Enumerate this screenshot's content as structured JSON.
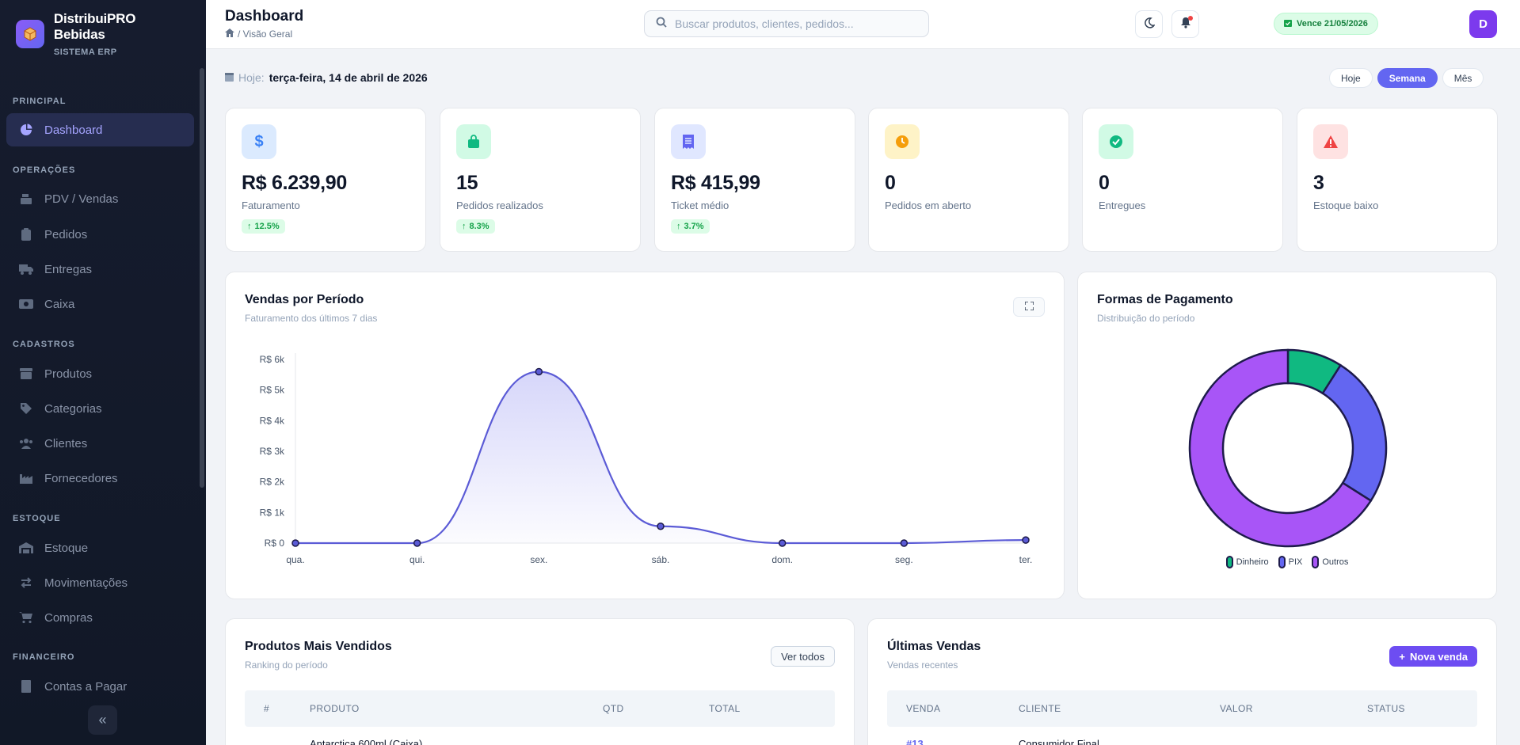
{
  "brand": {
    "name": "DistribuiPRO Bebidas",
    "subtitle": "SISTEMA ERP"
  },
  "sidebar": {
    "sections": [
      {
        "label": "PRINCIPAL"
      },
      {
        "label": "OPERAÇÕES"
      },
      {
        "label": "CADASTROS"
      },
      {
        "label": "ESTOQUE"
      },
      {
        "label": "FINANCEIRO"
      }
    ],
    "items": [
      {
        "label": "Dashboard",
        "icon": "chart-pie-icon",
        "active": true
      },
      {
        "label": "PDV / Vendas",
        "icon": "cash-register-icon"
      },
      {
        "label": "Pedidos",
        "icon": "clipboard-icon"
      },
      {
        "label": "Entregas",
        "icon": "truck-icon"
      },
      {
        "label": "Caixa",
        "icon": "money-icon"
      },
      {
        "label": "Produtos",
        "icon": "box-icon"
      },
      {
        "label": "Categorias",
        "icon": "tags-icon"
      },
      {
        "label": "Clientes",
        "icon": "users-icon"
      },
      {
        "label": "Fornecedores",
        "icon": "industry-icon"
      },
      {
        "label": "Estoque",
        "icon": "warehouse-icon"
      },
      {
        "label": "Movimentações",
        "icon": "exchange-icon"
      },
      {
        "label": "Compras",
        "icon": "cart-icon"
      },
      {
        "label": "Contas a Pagar",
        "icon": "invoice-icon"
      }
    ],
    "collapse_icon": "double-chevron-left-icon"
  },
  "header": {
    "title": "Dashboard",
    "breadcrumb": "/ Visão Geral",
    "search_placeholder": "Buscar produtos, clientes, pedidos...",
    "license_badge": "Vence 21/05/2026",
    "avatar_initial": "D"
  },
  "date_row": {
    "prefix": "Hoje:",
    "date": "terça-feira, 14 de abril de 2026"
  },
  "periods": [
    "Hoje",
    "Semana",
    "Mês"
  ],
  "active_period": "Semana",
  "kpis": [
    {
      "value": "R$ 6.239,90",
      "label": "Faturamento",
      "delta": "12.5%",
      "icon": "dollar-icon",
      "color": "#3b82f6",
      "bg": "#dbeafe"
    },
    {
      "value": "15",
      "label": "Pedidos realizados",
      "delta": "8.3%",
      "icon": "shopping-bag-icon",
      "color": "#10b981",
      "bg": "#d1fae5"
    },
    {
      "value": "R$ 415,99",
      "label": "Ticket médio",
      "delta": "3.7%",
      "icon": "receipt-icon",
      "color": "#6366f1",
      "bg": "#e0e7ff"
    },
    {
      "value": "0",
      "label": "Pedidos em aberto",
      "delta": "",
      "icon": "clock-icon",
      "color": "#f59e0b",
      "bg": "#fef3c7"
    },
    {
      "value": "0",
      "label": "Entregues",
      "delta": "",
      "icon": "check-circle-icon",
      "color": "#10b981",
      "bg": "#d1fae5"
    },
    {
      "value": "3",
      "label": "Estoque baixo",
      "delta": "",
      "icon": "warning-icon",
      "color": "#ef4444",
      "bg": "#fee2e2"
    }
  ],
  "sales_panel": {
    "title": "Vendas por Período",
    "subtitle": "Faturamento dos últimos 7 dias"
  },
  "payment_panel": {
    "title": "Formas de Pagamento",
    "subtitle": "Distribuição do período"
  },
  "chart_data": [
    {
      "type": "line",
      "categories": [
        "qua.",
        "qui.",
        "sex.",
        "sáb.",
        "dom.",
        "seg.",
        "ter."
      ],
      "values": [
        0,
        0,
        5600,
        550,
        0,
        0,
        100
      ],
      "ylim": [
        0,
        6000
      ],
      "yticks": [
        "R$ 0",
        "R$ 1k",
        "R$ 2k",
        "R$ 3k",
        "R$ 4k",
        "R$ 5k",
        "R$ 6k"
      ],
      "color": "#5b5bd6",
      "grid": false
    },
    {
      "type": "pie",
      "donut": true,
      "labels": [
        "Dinheiro",
        "PIX",
        "Outros"
      ],
      "values": [
        9,
        25,
        66
      ],
      "colors": [
        "#10b981",
        "#6366f1",
        "#a855f7"
      ],
      "legend": "bottom"
    }
  ],
  "top_products": {
    "title": "Produtos Mais Vendidos",
    "subtitle": "Ranking do período",
    "action": "Ver todos",
    "columns": [
      "#",
      "PRODUTO",
      "QTD",
      "TOTAL"
    ],
    "first_row_product": "Antarctica 600ml (Caixa)"
  },
  "recent_sales": {
    "title": "Últimas Vendas",
    "subtitle": "Vendas recentes",
    "action": "Nova venda",
    "columns": [
      "VENDA",
      "CLIENTE",
      "VALOR",
      "STATUS"
    ],
    "first_row_id": "#13",
    "first_row_client": "Consumidor Final"
  }
}
